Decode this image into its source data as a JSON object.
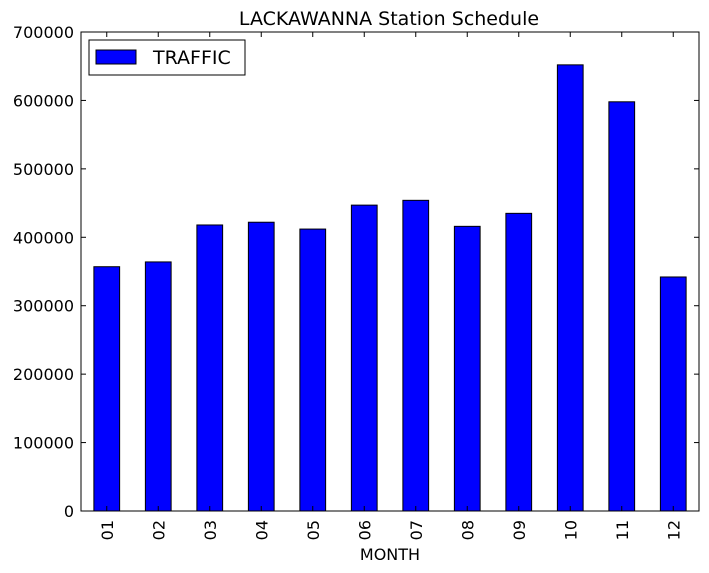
{
  "chart_data": {
    "type": "bar",
    "title": "LACKAWANNA Station Schedule",
    "xlabel": "MONTH",
    "ylabel": "",
    "categories": [
      "01",
      "02",
      "03",
      "04",
      "05",
      "06",
      "07",
      "08",
      "09",
      "10",
      "11",
      "12"
    ],
    "series": [
      {
        "name": "TRAFFIC",
        "color": "#0000ff",
        "values": [
          357000,
          364000,
          418000,
          422000,
          412000,
          447000,
          454000,
          416000,
          435000,
          652000,
          598000,
          342000
        ]
      }
    ],
    "ylim": [
      0,
      700000
    ],
    "yticks": [
      0,
      100000,
      200000,
      300000,
      400000,
      500000,
      600000,
      700000
    ],
    "ytick_labels": [
      "0",
      "100000",
      "200000",
      "300000",
      "400000",
      "500000",
      "600000",
      "700000"
    ],
    "grid": false,
    "legend_position": "top-left"
  }
}
